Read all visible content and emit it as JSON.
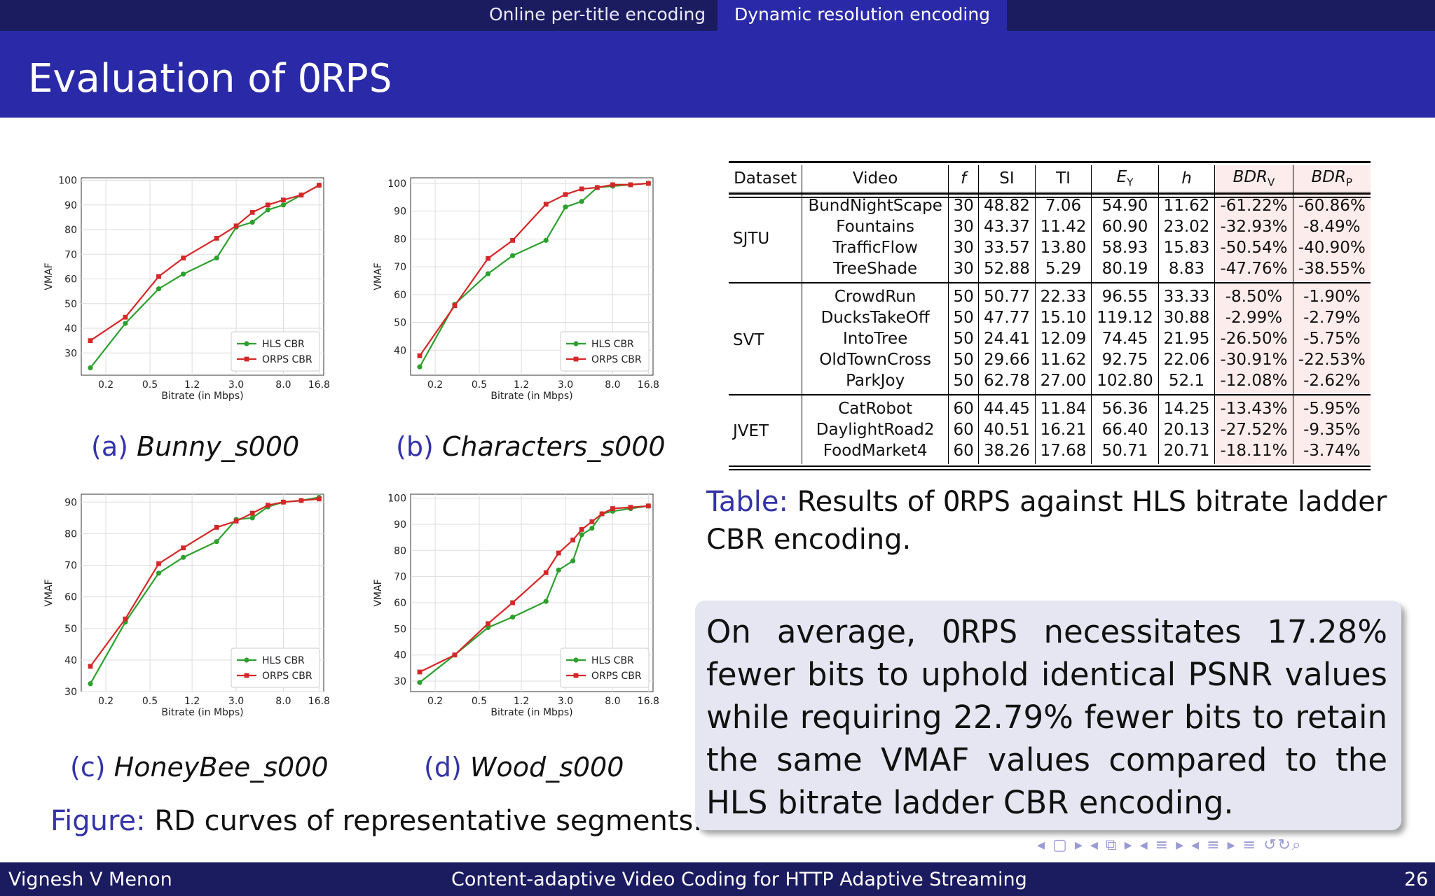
{
  "nav": {
    "items": [
      "Online per-title encoding",
      "Dynamic resolution encoding"
    ],
    "active_index": 1
  },
  "slide": {
    "title_prefix": "Evaluation of",
    "title_code": "ORPS"
  },
  "plots": [
    {
      "label": "(a)",
      "name": "Bunny_s000"
    },
    {
      "label": "(b)",
      "name": "Characters_s000"
    },
    {
      "label": "(c)",
      "name": "HoneyBee_s000"
    },
    {
      "label": "(d)",
      "name": "Wood_s000"
    }
  ],
  "chart_data": [
    {
      "type": "line",
      "caption": "Bunny_s000",
      "xlabel": "Bitrate (in Mbps)",
      "ylabel": "VMAF",
      "xticks": [
        "0.2",
        "0.5",
        "1.2",
        "3.0",
        "8.0",
        "16.8"
      ],
      "yticks": [
        30,
        40,
        50,
        60,
        70,
        80,
        90,
        100
      ],
      "ylim": [
        21,
        101
      ],
      "log_x": true,
      "grid": true,
      "legend": "bottom-right",
      "series": [
        {
          "name": "HLS CBR",
          "color": "#2ca02c",
          "x": [
            0.145,
            0.3,
            0.6,
            1.0,
            2.0,
            3.0,
            4.2,
            5.8,
            8.0,
            11.6,
            16.8
          ],
          "y": [
            24,
            42,
            56,
            62,
            68.5,
            81,
            83,
            88,
            90,
            94,
            98
          ]
        },
        {
          "name": "ORPS CBR",
          "color": "#d62728",
          "x": [
            0.145,
            0.3,
            0.6,
            1.0,
            2.0,
            3.0,
            4.2,
            5.8,
            8.0,
            11.6,
            16.8
          ],
          "y": [
            35,
            44.5,
            61,
            68.5,
            76.5,
            81.5,
            87,
            90,
            92,
            94,
            98
          ]
        }
      ]
    },
    {
      "type": "line",
      "caption": "Characters_s000",
      "xlabel": "Bitrate (in Mbps)",
      "ylabel": "VMAF",
      "xticks": [
        "0.2",
        "0.5",
        "1.2",
        "3.0",
        "8.0",
        "16.8"
      ],
      "yticks": [
        40,
        50,
        60,
        70,
        80,
        90,
        100
      ],
      "ylim": [
        31,
        102
      ],
      "log_x": true,
      "grid": true,
      "legend": "bottom-right",
      "series": [
        {
          "name": "HLS CBR",
          "color": "#2ca02c",
          "x": [
            0.145,
            0.3,
            0.6,
            1.0,
            2.0,
            3.0,
            4.2,
            5.8,
            8.0,
            11.6,
            16.8
          ],
          "y": [
            34,
            56.5,
            67.5,
            74,
            79.5,
            91.5,
            93.5,
            98.5,
            99,
            99.5,
            100
          ]
        },
        {
          "name": "ORPS CBR",
          "color": "#d62728",
          "x": [
            0.145,
            0.3,
            0.6,
            1.0,
            2.0,
            3.0,
            4.2,
            5.8,
            8.0,
            11.6,
            16.8
          ],
          "y": [
            38,
            56,
            73,
            79.5,
            92.5,
            96,
            98,
            98.5,
            99.5,
            99.5,
            100
          ]
        }
      ]
    },
    {
      "type": "line",
      "caption": "HoneyBee_s000",
      "xlabel": "Bitrate (in Mbps)",
      "ylabel": "VMAF",
      "xticks": [
        "0.2",
        "0.5",
        "1.2",
        "3.0",
        "8.0",
        "16.8"
      ],
      "yticks": [
        30,
        40,
        50,
        60,
        70,
        80,
        90
      ],
      "ylim": [
        30,
        92.5
      ],
      "log_x": true,
      "grid": true,
      "legend": "bottom-right",
      "series": [
        {
          "name": "HLS CBR",
          "color": "#2ca02c",
          "x": [
            0.145,
            0.3,
            0.6,
            1.0,
            2.0,
            3.0,
            4.2,
            5.8,
            8.0,
            11.6,
            16.8
          ],
          "y": [
            32.5,
            52,
            67.5,
            72.5,
            77.5,
            84.5,
            85,
            88.5,
            90,
            90.5,
            91.5
          ]
        },
        {
          "name": "ORPS CBR",
          "color": "#d62728",
          "x": [
            0.145,
            0.3,
            0.6,
            1.0,
            2.0,
            3.0,
            4.2,
            5.8,
            8.0,
            11.6,
            16.8
          ],
          "y": [
            38,
            53,
            70.5,
            75.5,
            82,
            84,
            86.5,
            89,
            90,
            90.5,
            91
          ]
        }
      ]
    },
    {
      "type": "line",
      "caption": "Wood_s000",
      "xlabel": "Bitrate (in Mbps)",
      "ylabel": "VMAF",
      "xticks": [
        "0.2",
        "0.5",
        "1.2",
        "3.0",
        "8.0",
        "16.8"
      ],
      "yticks": [
        30,
        40,
        50,
        60,
        70,
        80,
        90,
        100
      ],
      "ylim": [
        26,
        101.5
      ],
      "log_x": true,
      "grid": true,
      "legend": "bottom-right",
      "series": [
        {
          "name": "HLS CBR",
          "color": "#2ca02c",
          "x": [
            0.145,
            0.3,
            0.6,
            1.0,
            2.0,
            2.6,
            3.5,
            4.2,
            5.2,
            6.4,
            8.0,
            11.6,
            16.8
          ],
          "y": [
            29.5,
            40,
            50.5,
            54.5,
            60.5,
            72.5,
            76,
            86,
            88.5,
            94,
            95,
            96,
            97
          ]
        },
        {
          "name": "ORPS CBR",
          "color": "#d62728",
          "x": [
            0.145,
            0.3,
            0.6,
            1.0,
            2.0,
            2.6,
            3.5,
            4.2,
            5.2,
            6.4,
            8.0,
            11.6,
            16.8
          ],
          "y": [
            33.5,
            40,
            52,
            60,
            71.5,
            79,
            84,
            88,
            91,
            94,
            96,
            96.5,
            97
          ]
        }
      ]
    }
  ],
  "figure_caption": {
    "label": "Figure:",
    "text": "RD curves of representative segments."
  },
  "table": {
    "headers": [
      "Dataset",
      "Video",
      "f",
      "SI",
      "TI",
      "EY",
      "h",
      "BDRV",
      "BDRP"
    ],
    "groups": [
      {
        "dataset": "SJTU",
        "rows": [
          [
            "BundNightScape",
            "30",
            "48.82",
            "7.06",
            "54.90",
            "11.62",
            "-61.22%",
            "-60.86%"
          ],
          [
            "Fountains",
            "30",
            "43.37",
            "11.42",
            "60.90",
            "23.02",
            "-32.93%",
            "-8.49%"
          ],
          [
            "TrafficFlow",
            "30",
            "33.57",
            "13.80",
            "58.93",
            "15.83",
            "-50.54%",
            "-40.90%"
          ],
          [
            "TreeShade",
            "30",
            "52.88",
            "5.29",
            "80.19",
            "8.83",
            "-47.76%",
            "-38.55%"
          ]
        ]
      },
      {
        "dataset": "SVT",
        "rows": [
          [
            "CrowdRun",
            "50",
            "50.77",
            "22.33",
            "96.55",
            "33.33",
            "-8.50%",
            "-1.90%"
          ],
          [
            "DucksTakeOff",
            "50",
            "47.77",
            "15.10",
            "119.12",
            "30.88",
            "-2.99%",
            "-2.79%"
          ],
          [
            "IntoTree",
            "50",
            "24.41",
            "12.09",
            "74.45",
            "21.95",
            "-26.50%",
            "-5.75%"
          ],
          [
            "OldTownCross",
            "50",
            "29.66",
            "11.62",
            "92.75",
            "22.06",
            "-30.91%",
            "-22.53%"
          ],
          [
            "ParkJoy",
            "50",
            "62.78",
            "27.00",
            "102.80",
            "52.1",
            "-12.08%",
            "-2.62%"
          ]
        ]
      },
      {
        "dataset": "JVET",
        "rows": [
          [
            "CatRobot",
            "60",
            "44.45",
            "11.84",
            "56.36",
            "14.25",
            "-13.43%",
            "-5.95%"
          ],
          [
            "DaylightRoad2",
            "60",
            "40.51",
            "16.21",
            "66.40",
            "20.13",
            "-27.52%",
            "-9.35%"
          ],
          [
            "FoodMarket4",
            "60",
            "38.26",
            "17.68",
            "50.71",
            "20.71",
            "-18.11%",
            "-3.74%"
          ]
        ]
      }
    ]
  },
  "table_caption": {
    "label": "Table:",
    "text_before": "Results of",
    "code": "ORPS",
    "text_after": "against HLS bitrate ladder CBR encoding."
  },
  "summary": {
    "before": "On average,",
    "code": "ORPS",
    "after": "necessitates 17.28% fewer bits to uphold identical PSNR values while requiring 22.79% fewer bits to retain the same VMAF values compared to the HLS bitrate ladder CBR encoding."
  },
  "footer": {
    "author": "Vignesh V Menon",
    "title": "Content-adaptive Video Coding for HTTP Adaptive Streaming",
    "page": "26"
  },
  "colors": {
    "nav_bg": "#1b1b60",
    "title_bg": "#2a2aa8",
    "caption_label": "#3333aa",
    "box_bg": "#e6e6f2",
    "bdr_bg": "#fdecec"
  }
}
